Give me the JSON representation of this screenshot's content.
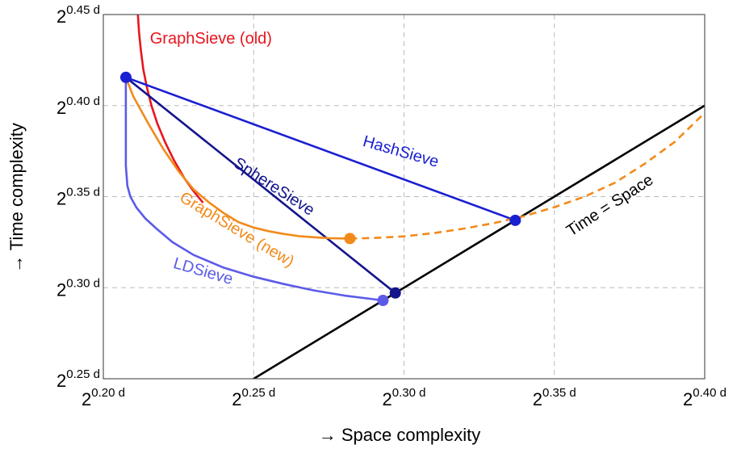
{
  "chart_data": {
    "type": "line",
    "xlabel": "→ Space complexity",
    "ylabel": "→ Time complexity",
    "xlim": [
      0.2,
      0.4
    ],
    "ylim": [
      0.25,
      0.45
    ],
    "grid": true,
    "x_ticks": [
      {
        "base": "2",
        "exp": "0.20 d",
        "value": 0.2
      },
      {
        "base": "2",
        "exp": "0.25 d",
        "value": 0.25
      },
      {
        "base": "2",
        "exp": "0.30 d",
        "value": 0.3
      },
      {
        "base": "2",
        "exp": "0.35 d",
        "value": 0.35
      },
      {
        "base": "2",
        "exp": "0.40 d",
        "value": 0.4
      }
    ],
    "y_ticks": [
      {
        "base": "2",
        "exp": "0.25 d",
        "value": 0.25
      },
      {
        "base": "2",
        "exp": "0.30 d",
        "value": 0.3
      },
      {
        "base": "2",
        "exp": "0.35 d",
        "value": 0.35
      },
      {
        "base": "2",
        "exp": "0.40 d",
        "value": 0.4
      },
      {
        "base": "2",
        "exp": "0.45 d",
        "value": 0.45
      }
    ],
    "series": [
      {
        "name": "Time = Space",
        "color": "#000000",
        "style": "solid",
        "points": [
          [
            0.25,
            0.25
          ],
          [
            0.4,
            0.4
          ]
        ],
        "markers": []
      },
      {
        "name": "GraphSieve (old)",
        "color": "#e8151e",
        "style": "solid",
        "points": [
          [
            0.2115,
            0.45
          ],
          [
            0.2119,
            0.44
          ],
          [
            0.2125,
            0.43
          ],
          [
            0.2133,
            0.42
          ],
          [
            0.2145,
            0.41
          ],
          [
            0.216,
            0.4
          ],
          [
            0.218,
            0.39
          ],
          [
            0.2205,
            0.38
          ],
          [
            0.2235,
            0.37
          ],
          [
            0.227,
            0.36
          ],
          [
            0.23,
            0.353
          ],
          [
            0.233,
            0.347
          ]
        ],
        "markers": []
      },
      {
        "name": "HashSieve",
        "color": "#1a1fd1",
        "style": "solid",
        "points": [
          [
            0.2075,
            0.4155
          ],
          [
            0.337,
            0.337
          ]
        ],
        "markers": [
          [
            0.2075,
            0.4155
          ],
          [
            0.337,
            0.337
          ]
        ]
      },
      {
        "name": "SphereSieve",
        "color": "#14148c",
        "style": "solid",
        "points": [
          [
            0.2075,
            0.4155
          ],
          [
            0.2971,
            0.2971
          ]
        ],
        "markers": [
          [
            0.2971,
            0.2971
          ]
        ]
      },
      {
        "name": "GraphSieve (new)",
        "color": "#f28a1a",
        "style": "solid",
        "points": [
          [
            0.2075,
            0.4155
          ],
          [
            0.21,
            0.405
          ],
          [
            0.215,
            0.39
          ],
          [
            0.22,
            0.376
          ],
          [
            0.225,
            0.364
          ],
          [
            0.23,
            0.354
          ],
          [
            0.235,
            0.347
          ],
          [
            0.24,
            0.341
          ],
          [
            0.245,
            0.336
          ],
          [
            0.25,
            0.333
          ],
          [
            0.255,
            0.331
          ],
          [
            0.26,
            0.3295
          ],
          [
            0.265,
            0.3283
          ],
          [
            0.27,
            0.3277
          ],
          [
            0.275,
            0.3272
          ],
          [
            0.282,
            0.327
          ]
        ],
        "markers": [
          [
            0.282,
            0.327
          ]
        ]
      },
      {
        "name": "",
        "color": "#f28a1a",
        "style": "dashed",
        "points": [
          [
            0.282,
            0.327
          ],
          [
            0.29,
            0.3273
          ],
          [
            0.3,
            0.3282
          ],
          [
            0.31,
            0.33
          ],
          [
            0.32,
            0.3325
          ],
          [
            0.33,
            0.3355
          ],
          [
            0.34,
            0.3393
          ],
          [
            0.35,
            0.3442
          ],
          [
            0.36,
            0.35
          ],
          [
            0.37,
            0.3575
          ],
          [
            0.38,
            0.368
          ],
          [
            0.39,
            0.38
          ],
          [
            0.4,
            0.396
          ]
        ],
        "markers": []
      },
      {
        "name": "LDSieve",
        "color": "#5b5be8",
        "style": "solid",
        "points": [
          [
            0.2075,
            0.4155
          ],
          [
            0.2075,
            0.367
          ],
          [
            0.208,
            0.356
          ],
          [
            0.209,
            0.35
          ],
          [
            0.211,
            0.344
          ],
          [
            0.214,
            0.338
          ],
          [
            0.218,
            0.332
          ],
          [
            0.223,
            0.325
          ],
          [
            0.23,
            0.318
          ],
          [
            0.24,
            0.311
          ],
          [
            0.25,
            0.306
          ],
          [
            0.26,
            0.302
          ],
          [
            0.27,
            0.2985
          ],
          [
            0.28,
            0.2957
          ],
          [
            0.293,
            0.293
          ]
        ],
        "markers": [
          [
            0.293,
            0.293
          ]
        ]
      }
    ]
  }
}
